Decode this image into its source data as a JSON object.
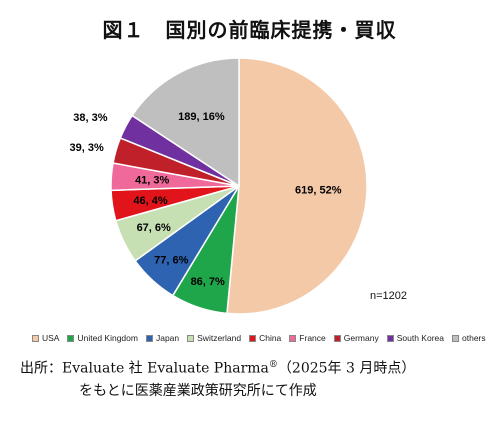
{
  "chart_data": {
    "type": "pie",
    "title": "図１　国別の前臨床提携・買収",
    "total_note": "n=1202",
    "slices": [
      {
        "name": "USA",
        "value": 619,
        "label": "619, 52%",
        "color": "#f4c9a8"
      },
      {
        "name": "United Kingdom",
        "value": 86,
        "label": "86, 7%",
        "color": "#1fa54a"
      },
      {
        "name": "Japan",
        "value": 77,
        "label": "77, 6%",
        "color": "#2d63b0"
      },
      {
        "name": "Switzerland",
        "value": 67,
        "label": "67, 6%",
        "color": "#c6e0b4"
      },
      {
        "name": "China",
        "value": 46,
        "label": "46, 4%",
        "color": "#e1141c"
      },
      {
        "name": "France",
        "value": 41,
        "label": "41, 3%",
        "color": "#ef6a9a"
      },
      {
        "name": "Germany",
        "value": 39,
        "label": "39, 3%",
        "color": "#c0202a"
      },
      {
        "name": "South Korea",
        "value": 38,
        "label": "38, 3%",
        "color": "#7030a0"
      },
      {
        "name": "others",
        "value": 189,
        "label": "189, 16%",
        "color": "#bfbfbf"
      }
    ],
    "legend_position": "bottom"
  },
  "source": {
    "line1_main": "出所：Evaluate 社 Evaluate Pharma",
    "line1_mark": "®",
    "line1_tail": "（2025年 3 月時点）",
    "line2": "をもとに医薬産業政策研究所にて作成"
  }
}
